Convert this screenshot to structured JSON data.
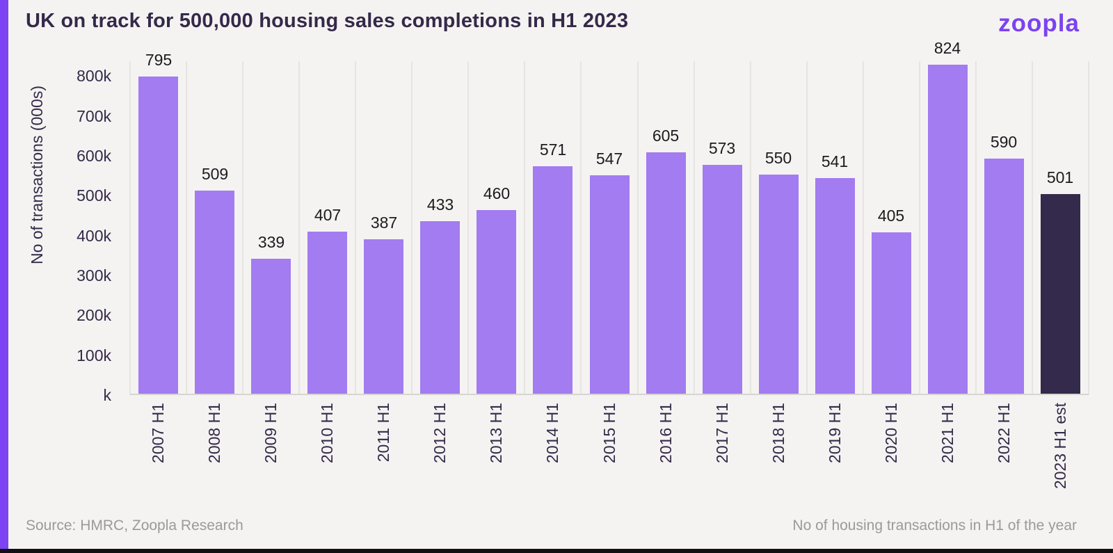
{
  "header": {
    "title": "UK on track for 500,000 housing sales completions in H1 2023",
    "logo_text": "zoopla"
  },
  "chart_data": {
    "type": "bar",
    "title": "UK on track for 500,000 housing sales completions in H1 2023",
    "ylabel": "No of transactions (000s)",
    "xlabel": "",
    "categories": [
      "2007 H1",
      "2008 H1",
      "2009 H1",
      "2010 H1",
      "2011 H1",
      "2012 H1",
      "2013 H1",
      "2014 H1",
      "2015 H1",
      "2016 H1",
      "2017 H1",
      "2018 H1",
      "2019 H1",
      "2020 H1",
      "2021 H1",
      "2022 H1",
      "2023 H1 est"
    ],
    "values": [
      795,
      509,
      339,
      407,
      387,
      433,
      460,
      571,
      547,
      605,
      573,
      550,
      541,
      405,
      824,
      590,
      501
    ],
    "y_ticks": [
      {
        "label": "k",
        "value": 0
      },
      {
        "label": "100k",
        "value": 100
      },
      {
        "label": "200k",
        "value": 200
      },
      {
        "label": "300k",
        "value": 300
      },
      {
        "label": "400k",
        "value": 400
      },
      {
        "label": "500k",
        "value": 500
      },
      {
        "label": "600k",
        "value": 600
      },
      {
        "label": "700k",
        "value": 700
      },
      {
        "label": "800k",
        "value": 800
      }
    ],
    "ylim": [
      0,
      837
    ],
    "grid": "vertical",
    "legend": "none",
    "bar_color": "#a27cf0",
    "highlight_index": 16,
    "highlight_color": "#342a4b"
  },
  "footer": {
    "source": "Source: HMRC, Zoopla Research",
    "note": "No of housing transactions in H1 of the year"
  },
  "colors": {
    "accent": "#7c44f3",
    "background": "#f5f3f1",
    "text_dark": "#35294a",
    "value_label": "#1b1b1f",
    "gridline": "#e6e4e1",
    "footer_text": "#9a9a9a"
  }
}
